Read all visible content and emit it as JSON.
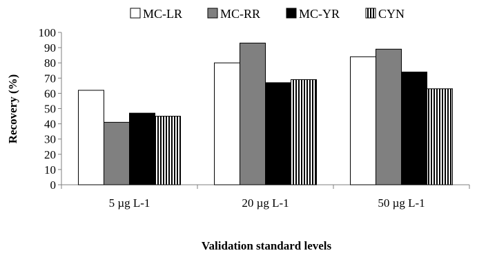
{
  "chart_data": {
    "type": "bar",
    "categories": [
      "5 µg L-1",
      "20 µg L-1",
      "50 µg L-1"
    ],
    "series": [
      {
        "name": "MC-LR",
        "values": [
          62,
          80,
          84
        ],
        "fill": "#ffffff",
        "pattern": "solid"
      },
      {
        "name": "MC-RR",
        "values": [
          41,
          93,
          89
        ],
        "fill": "#808080",
        "pattern": "solid"
      },
      {
        "name": "MC-YR",
        "values": [
          47,
          67,
          74
        ],
        "fill": "#000000",
        "pattern": "solid"
      },
      {
        "name": "CYN",
        "values": [
          45,
          69,
          63
        ],
        "fill": "#ffffff",
        "pattern": "vertical-stripes"
      }
    ],
    "xlabel": "Validation standard levels",
    "ylabel": "Recovery (%)",
    "ylim": [
      0,
      100
    ],
    "yticks": [
      0,
      10,
      20,
      30,
      40,
      50,
      60,
      70,
      80,
      90,
      100
    ],
    "legend_position": "top",
    "grid": false
  }
}
